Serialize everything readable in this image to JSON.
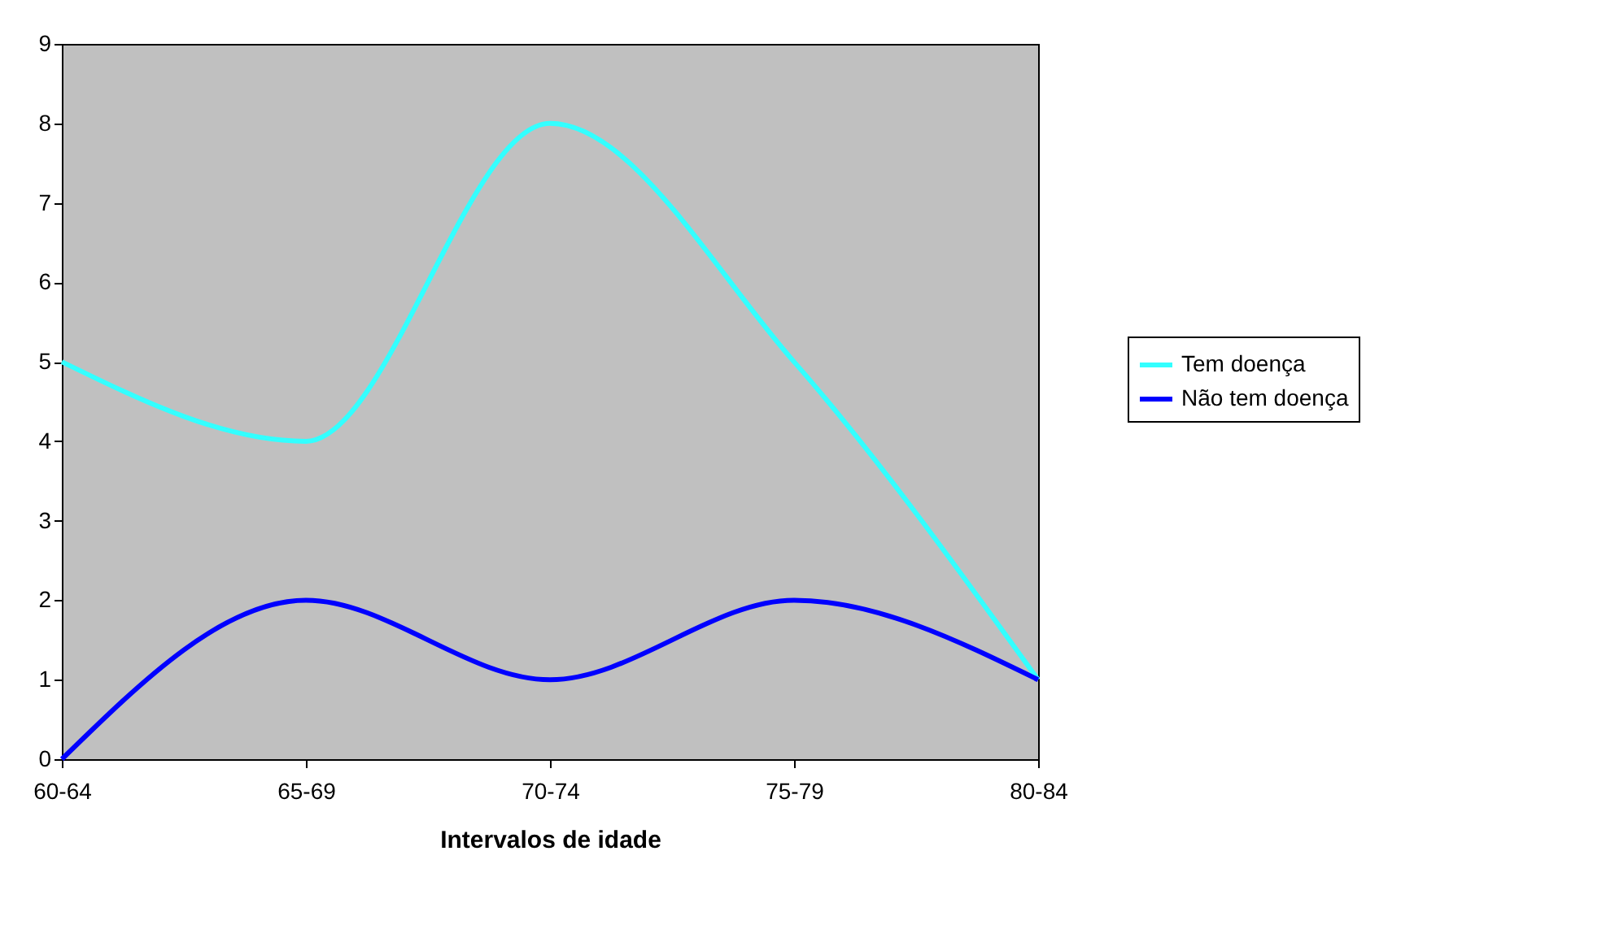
{
  "chart_data": {
    "type": "line",
    "xlabel": "Intervalos de idade",
    "categories": [
      "60-64",
      "65-69",
      "70-74",
      "75-79",
      "80-84"
    ],
    "series": [
      {
        "name": "Tem doença",
        "color": "#33ffff",
        "values": [
          5,
          4,
          8,
          5,
          1
        ]
      },
      {
        "name": "Não tem doença",
        "color": "#0000ff",
        "values": [
          0,
          2,
          1,
          2,
          1
        ]
      }
    ],
    "ylim": [
      0,
      9
    ],
    "yticks": [
      0,
      1,
      2,
      3,
      4,
      5,
      6,
      7,
      8,
      9
    ],
    "grid": false,
    "legend": "right",
    "marker": "none",
    "line_style": "solid"
  }
}
